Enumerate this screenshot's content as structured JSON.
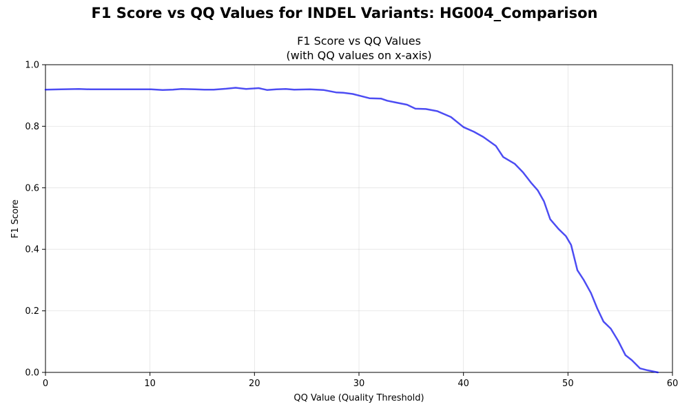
{
  "figure": {
    "suptitle": "F1 Score vs QQ Values for INDEL Variants: HG004_Comparison"
  },
  "chart_data": {
    "type": "line",
    "title_line1": "F1 Score vs QQ Values",
    "title_line2": "(with QQ values on x-axis)",
    "xlabel": "QQ Value (Quality Threshold)",
    "ylabel": "F1 Score",
    "xlim": [
      0,
      60
    ],
    "ylim": [
      0,
      1.0
    ],
    "xticks": [
      0,
      10,
      20,
      30,
      40,
      50,
      60
    ],
    "xtick_labels": [
      "0",
      "10",
      "20",
      "30",
      "40",
      "50",
      "60"
    ],
    "yticks": [
      0.0,
      0.2,
      0.4,
      0.6,
      0.8,
      1.0
    ],
    "ytick_labels": [
      "0.0",
      "0.2",
      "0.4",
      "0.6",
      "0.8",
      "1.0"
    ],
    "grid": true,
    "legend": "none",
    "series": [
      {
        "color": "#0000ee",
        "x": [
          0,
          1.5,
          3.2,
          4.3,
          6.2,
          8.1,
          10.1,
          11.2,
          12.2,
          13.0,
          14.3,
          15.2,
          16.1,
          17.3,
          18.2,
          19.2,
          20.4,
          21.2,
          22.1,
          23.0,
          23.8,
          25.3,
          26.6,
          27.8,
          28.5,
          29.4,
          30.2,
          31.0,
          32.1,
          32.7,
          33.4,
          34.6,
          35.4,
          36.4,
          37.5,
          38.8,
          40.0,
          41.0,
          41.9,
          43.1,
          43.8,
          44.9,
          45.7,
          46.5,
          47.1,
          47.7,
          48.3,
          49.1,
          49.8,
          50.3,
          50.9,
          51.5,
          52.2,
          52.8,
          53.4,
          54.1,
          54.8,
          55.5,
          56.1,
          56.9,
          57.6,
          58.6
        ],
        "y": [
          0.919,
          0.92,
          0.921,
          0.92,
          0.92,
          0.92,
          0.92,
          0.918,
          0.919,
          0.921,
          0.92,
          0.919,
          0.919,
          0.922,
          0.925,
          0.921,
          0.924,
          0.918,
          0.92,
          0.921,
          0.919,
          0.92,
          0.918,
          0.91,
          0.909,
          0.905,
          0.898,
          0.891,
          0.89,
          0.883,
          0.878,
          0.87,
          0.857,
          0.856,
          0.849,
          0.83,
          0.797,
          0.782,
          0.765,
          0.736,
          0.7,
          0.678,
          0.65,
          0.615,
          0.592,
          0.556,
          0.498,
          0.466,
          0.443,
          0.414,
          0.332,
          0.301,
          0.258,
          0.208,
          0.165,
          0.142,
          0.103,
          0.056,
          0.04,
          0.013,
          0.007,
          0.0
        ]
      }
    ]
  }
}
